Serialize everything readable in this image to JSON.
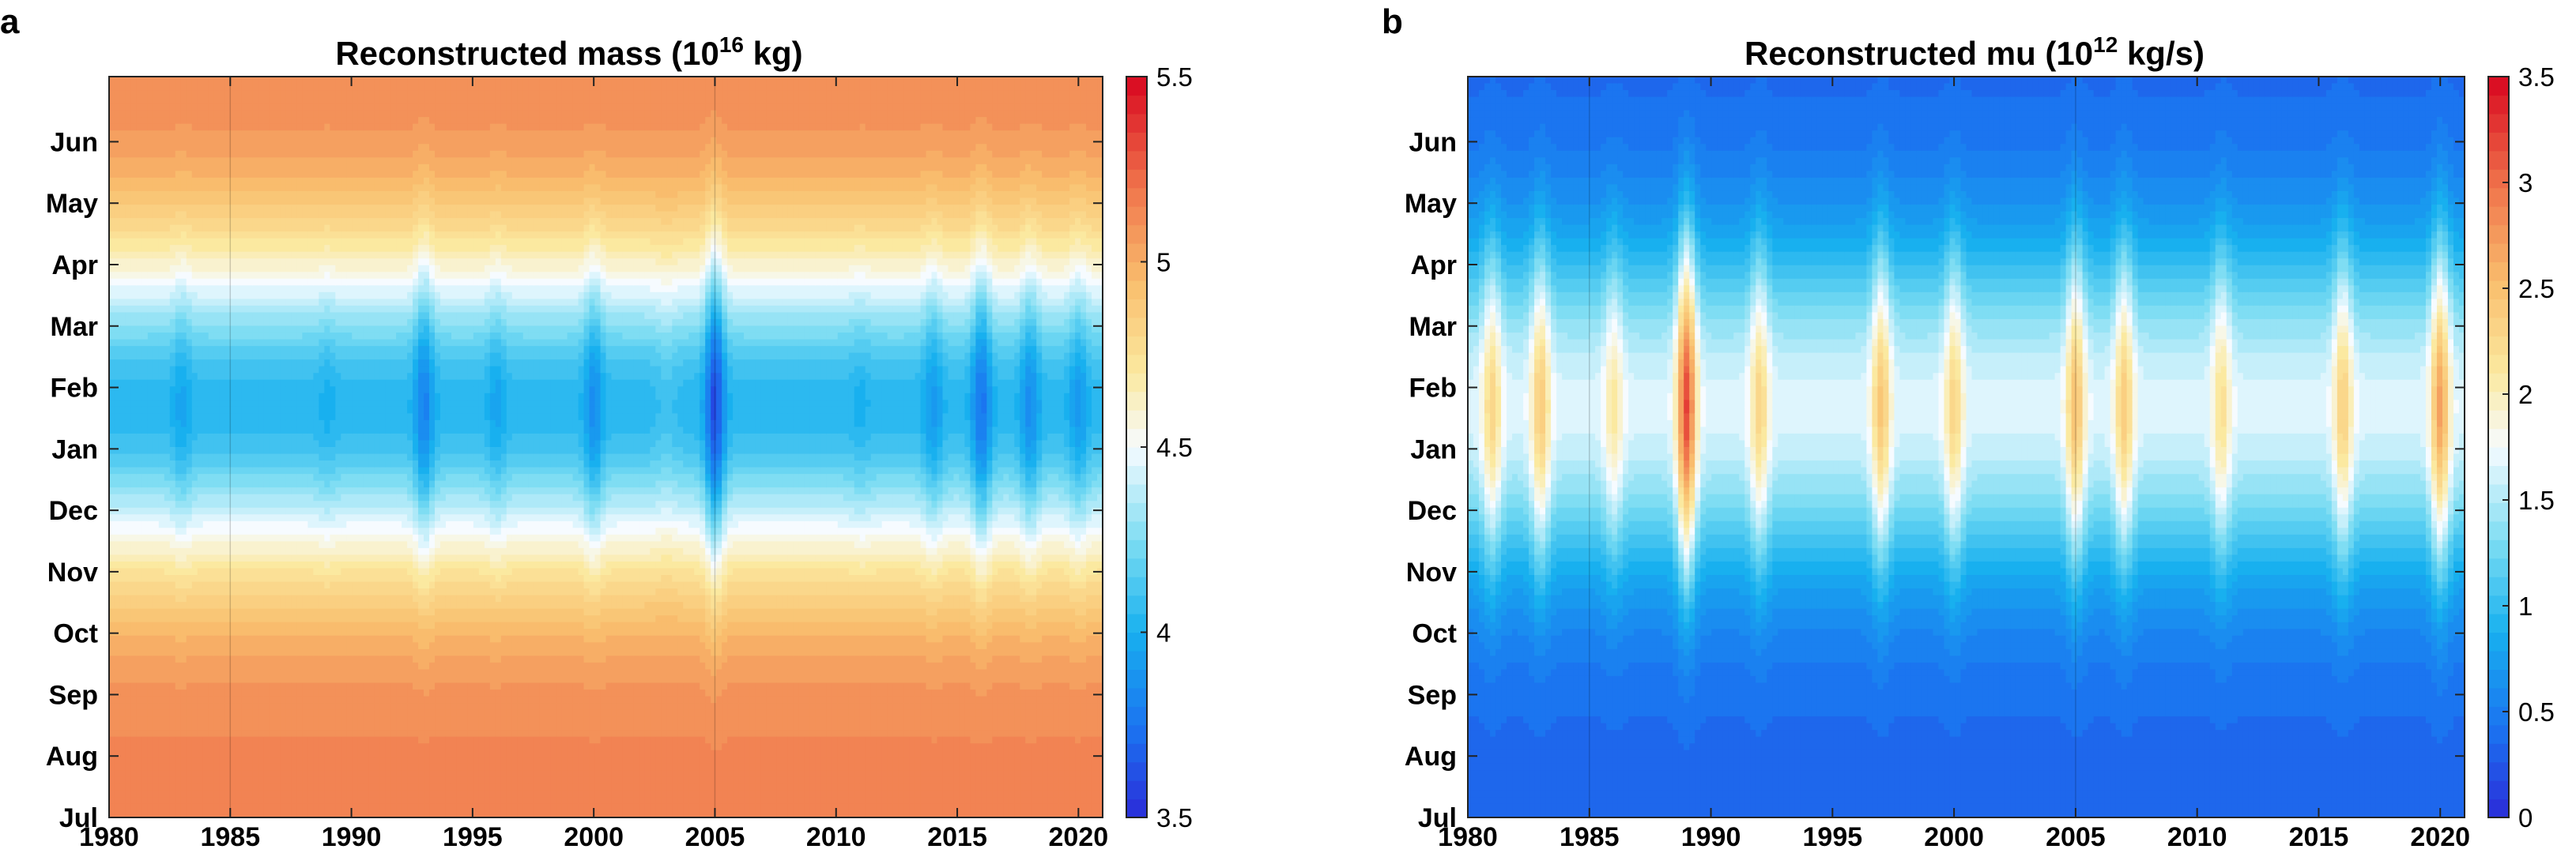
{
  "chart_data": [
    {
      "panel": "a",
      "type": "heatmap",
      "title": "Reconstructed mass (10",
      "title_sup": "16",
      "title_tail": " kg)",
      "xlabel": "",
      "ylabel": "",
      "xlim": [
        1980,
        2021
      ],
      "x_ticks": [
        "1980",
        "1985",
        "1990",
        "1995",
        "2000",
        "2005",
        "2010",
        "2015",
        "2020"
      ],
      "y_ticks": [
        "Jul",
        "Aug",
        "Sep",
        "Oct",
        "Nov",
        "Dec",
        "Jan",
        "Feb",
        "Mar",
        "Apr",
        "May",
        "Jun"
      ],
      "colorbar": {
        "min": 3.5,
        "max": 5.5,
        "ticks": [
          "3.5",
          "4",
          "4.5",
          "5",
          "5.5"
        ],
        "colormap": "blue-cyan-white-yellow-red"
      },
      "summer_value": 5.15,
      "winter_value": 4.05,
      "winter_extremes": [
        {
          "year": 1981,
          "value": 4.05
        },
        {
          "year": 1983,
          "value": 3.95
        },
        {
          "year": 1989,
          "value": 4.0
        },
        {
          "year": 1993,
          "value": 3.8
        },
        {
          "year": 1996,
          "value": 3.95
        },
        {
          "year": 2000,
          "value": 3.85
        },
        {
          "year": 2003,
          "value": 4.1
        },
        {
          "year": 2005,
          "value": 3.6
        },
        {
          "year": 2008,
          "value": 4.05
        },
        {
          "year": 2011,
          "value": 4.0
        },
        {
          "year": 2014,
          "value": 3.9
        },
        {
          "year": 2016,
          "value": 3.75
        },
        {
          "year": 2018,
          "value": 3.85
        },
        {
          "year": 2020,
          "value": 3.9
        }
      ],
      "separators": [
        1985,
        2005
      ]
    },
    {
      "panel": "b",
      "type": "heatmap",
      "title": "Reconstructed mu (10",
      "title_sup": "12",
      "title_tail": " kg/s)",
      "xlabel": "",
      "ylabel": "",
      "xlim": [
        1980,
        2021
      ],
      "x_ticks": [
        "1980",
        "1985",
        "1990",
        "1995",
        "2000",
        "2005",
        "2010",
        "2015",
        "2020"
      ],
      "y_ticks": [
        "Jul",
        "Aug",
        "Sep",
        "Oct",
        "Nov",
        "Dec",
        "Jan",
        "Feb",
        "Mar",
        "Apr",
        "May",
        "Jun"
      ],
      "colorbar": {
        "min": 0,
        "max": 3.5,
        "ticks": [
          "0",
          "0.5",
          "1",
          "1.5",
          "2",
          "2.5",
          "3",
          "3.5"
        ],
        "colormap": "blue-cyan-white-yellow-red"
      },
      "summer_value": 0.35,
      "winter_value": 1.65,
      "winter_extremes": [
        {
          "year": 1981,
          "value": 2.3
        },
        {
          "year": 1983,
          "value": 2.4
        },
        {
          "year": 1986,
          "value": 2.1
        },
        {
          "year": 1989,
          "value": 3.2
        },
        {
          "year": 1992,
          "value": 2.3
        },
        {
          "year": 1997,
          "value": 2.45
        },
        {
          "year": 2000,
          "value": 2.3
        },
        {
          "year": 2005,
          "value": 2.5
        },
        {
          "year": 2007,
          "value": 2.4
        },
        {
          "year": 2011,
          "value": 2.2
        },
        {
          "year": 2016,
          "value": 2.35
        },
        {
          "year": 2020,
          "value": 2.7
        }
      ],
      "separators": [
        1985,
        2005
      ]
    }
  ]
}
